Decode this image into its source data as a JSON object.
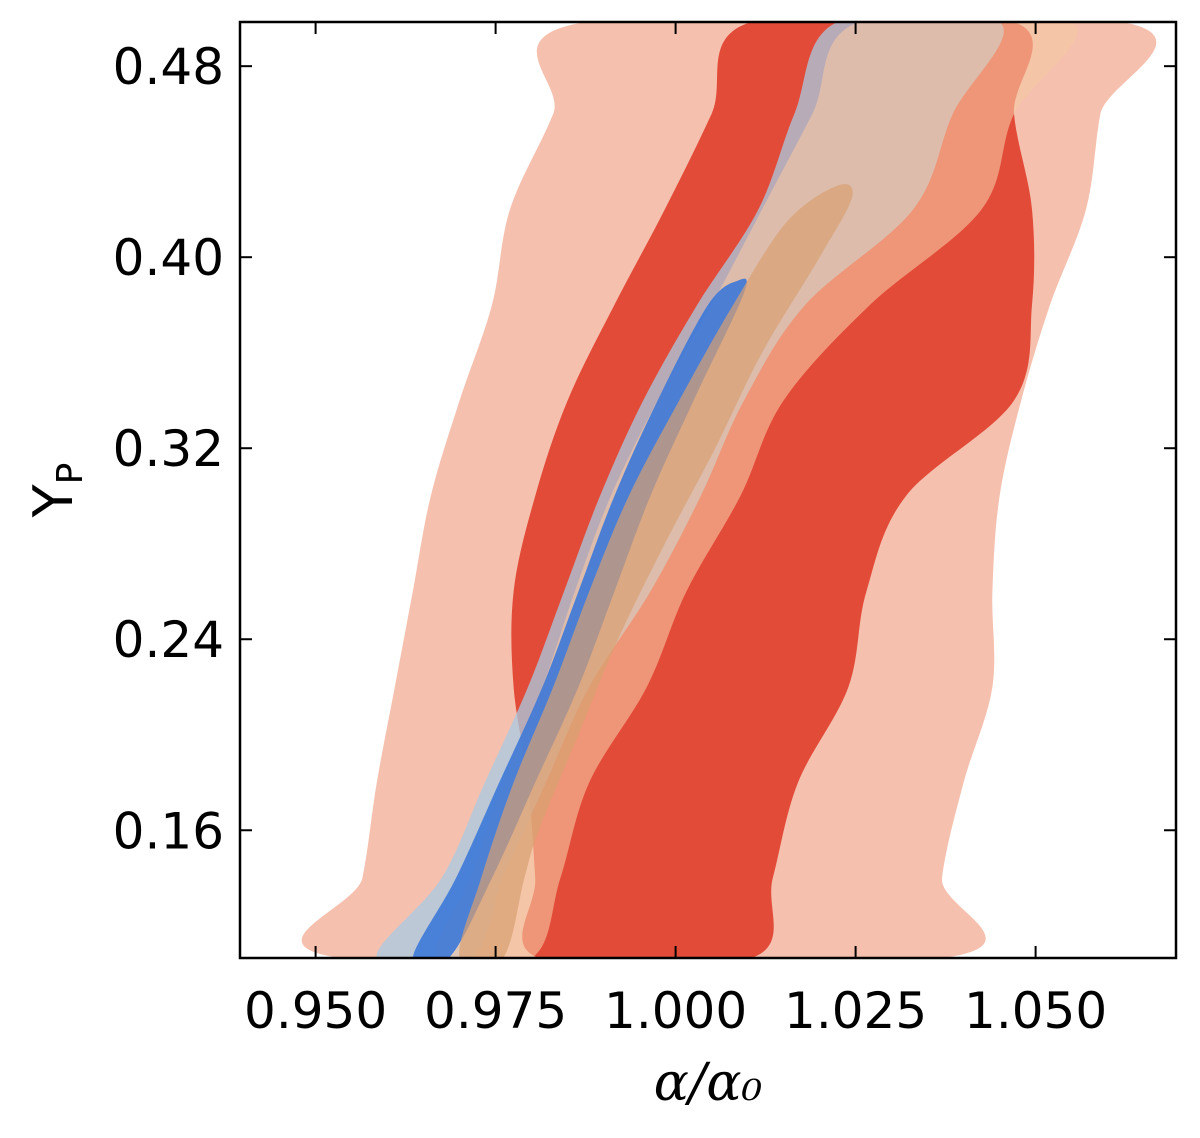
{
  "chart_data": {
    "type": "contour",
    "xlabel": "α/α₀",
    "ylabel": "Y",
    "ylabel_sub": "P",
    "xlim": [
      0.9395,
      1.0695
    ],
    "ylim": [
      0.1065,
      0.4985
    ],
    "xticks": [
      0.95,
      0.975,
      1.0,
      1.025,
      1.05
    ],
    "xtick_labels": [
      "0.950",
      "0.975",
      "1.000",
      "1.025",
      "1.050"
    ],
    "yticks": [
      0.16,
      0.24,
      0.32,
      0.4,
      0.48
    ],
    "ytick_labels": [
      "0.16",
      "0.24",
      "0.32",
      "0.40",
      "0.48"
    ],
    "grid": false,
    "colors": {
      "red_outer": "#f6c0ae",
      "red_inner": "#e34b39",
      "blue_outer": "#a9cbe3",
      "blue_inner": "#3c78d8",
      "peach_outer": "#f5c8a2",
      "peach_inner": "#d9a070"
    },
    "contours": [
      {
        "id": "red-outer",
        "color": "#f6c0ae",
        "points": [
          [
            0.9535,
            0.1065
          ],
          [
            0.9565,
            0.14
          ],
          [
            0.9585,
            0.18
          ],
          [
            0.961,
            0.22
          ],
          [
            0.9635,
            0.26
          ],
          [
            0.966,
            0.3
          ],
          [
            0.97,
            0.34
          ],
          [
            0.9745,
            0.38
          ],
          [
            0.977,
            0.42
          ],
          [
            0.983,
            0.46
          ],
          [
            0.9875,
            0.4985
          ],
          [
            1.062,
            0.4985
          ],
          [
            1.059,
            0.46
          ],
          [
            1.057,
            0.42
          ],
          [
            1.052,
            0.38
          ],
          [
            1.048,
            0.34
          ],
          [
            1.045,
            0.3
          ],
          [
            1.044,
            0.26
          ],
          [
            1.044,
            0.22
          ],
          [
            1.04,
            0.18
          ],
          [
            1.037,
            0.14
          ],
          [
            1.037,
            0.1065
          ]
        ]
      },
      {
        "id": "red-inner",
        "color": "#e34b39",
        "points": [
          [
            0.981,
            0.1065
          ],
          [
            0.9805,
            0.14
          ],
          [
            0.9795,
            0.18
          ],
          [
            0.9775,
            0.22
          ],
          [
            0.9775,
            0.26
          ],
          [
            0.9805,
            0.3
          ],
          [
            0.985,
            0.34
          ],
          [
            0.9915,
            0.38
          ],
          [
            0.9985,
            0.42
          ],
          [
            1.005,
            0.46
          ],
          [
            1.0105,
            0.4985
          ],
          [
            1.047,
            0.4985
          ],
          [
            1.047,
            0.46
          ],
          [
            1.0495,
            0.42
          ],
          [
            1.0495,
            0.38
          ],
          [
            1.047,
            0.34
          ],
          [
            1.032,
            0.3
          ],
          [
            1.0265,
            0.26
          ],
          [
            1.024,
            0.22
          ],
          [
            1.017,
            0.18
          ],
          [
            1.0135,
            0.14
          ],
          [
            1.0105,
            0.1065
          ]
        ]
      },
      {
        "id": "blue-outer",
        "color": "#a9cbe3",
        "points": [
          [
            0.9585,
            0.1065
          ],
          [
            0.9675,
            0.14
          ],
          [
            0.9735,
            0.18
          ],
          [
            0.9795,
            0.22
          ],
          [
            0.9845,
            0.26
          ],
          [
            0.9895,
            0.3
          ],
          [
            0.9955,
            0.34
          ],
          [
            1.003,
            0.38
          ],
          [
            1.0115,
            0.42
          ],
          [
            1.0165,
            0.46
          ],
          [
            1.0225,
            0.4985
          ],
          [
            1.045,
            0.4985
          ],
          [
            1.0385,
            0.46
          ],
          [
            1.033,
            0.42
          ],
          [
            1.018,
            0.38
          ],
          [
            1.0095,
            0.34
          ],
          [
            1.0035,
            0.3
          ],
          [
            0.9965,
            0.26
          ],
          [
            0.988,
            0.22
          ],
          [
            0.982,
            0.18
          ],
          [
            0.976,
            0.14
          ],
          [
            0.9715,
            0.1065
          ]
        ]
      },
      {
        "id": "peach-outer",
        "color": "#f5c8a2",
        "points": [
          [
            0.967,
            0.1065
          ],
          [
            0.9715,
            0.14
          ],
          [
            0.976,
            0.18
          ],
          [
            0.9815,
            0.22
          ],
          [
            0.986,
            0.26
          ],
          [
            0.991,
            0.3
          ],
          [
            0.9975,
            0.34
          ],
          [
            1.005,
            0.38
          ],
          [
            1.012,
            0.42
          ],
          [
            1.019,
            0.46
          ],
          [
            1.0255,
            0.4985
          ],
          [
            1.055,
            0.4985
          ],
          [
            1.047,
            0.46
          ],
          [
            1.0425,
            0.42
          ],
          [
            1.027,
            0.38
          ],
          [
            1.015,
            0.34
          ],
          [
            1.009,
            0.3
          ],
          [
            1.0015,
            0.26
          ],
          [
            0.996,
            0.22
          ],
          [
            0.988,
            0.18
          ],
          [
            0.984,
            0.14
          ],
          [
            0.98,
            0.1065
          ]
        ]
      },
      {
        "id": "blue-inner",
        "color": "#3c78d8",
        "points": [
          [
            0.9635,
            0.1065
          ],
          [
            0.9695,
            0.14
          ],
          [
            0.9755,
            0.18
          ],
          [
            0.9815,
            0.22
          ],
          [
            0.9865,
            0.26
          ],
          [
            0.9915,
            0.3
          ],
          [
            0.9975,
            0.34
          ],
          [
            1.0045,
            0.38
          ],
          [
            1.0085,
            0.39
          ],
          [
            1.0095,
            0.385
          ],
          [
            1.0025,
            0.34
          ],
          [
            0.9965,
            0.3
          ],
          [
            0.9915,
            0.26
          ],
          [
            0.9865,
            0.22
          ],
          [
            0.9805,
            0.18
          ],
          [
            0.9745,
            0.14
          ],
          [
            0.9685,
            0.1065
          ]
        ]
      },
      {
        "id": "peach-inner",
        "color": "#d9a070",
        "points": [
          [
            0.97,
            0.1065
          ],
          [
            0.973,
            0.14
          ],
          [
            0.9775,
            0.18
          ],
          [
            0.983,
            0.22
          ],
          [
            0.988,
            0.26
          ],
          [
            0.9935,
            0.3
          ],
          [
            1.0005,
            0.34
          ],
          [
            1.008,
            0.38
          ],
          [
            1.0155,
            0.415
          ],
          [
            1.0225,
            0.43
          ],
          [
            1.0245,
            0.425
          ],
          [
            1.02,
            0.4
          ],
          [
            1.012,
            0.36
          ],
          [
            1.0055,
            0.32
          ],
          [
            0.9985,
            0.28
          ],
          [
            0.992,
            0.24
          ],
          [
            0.9865,
            0.2
          ],
          [
            0.981,
            0.16
          ],
          [
            0.979,
            0.14
          ],
          [
            0.976,
            0.1065
          ]
        ]
      }
    ]
  }
}
